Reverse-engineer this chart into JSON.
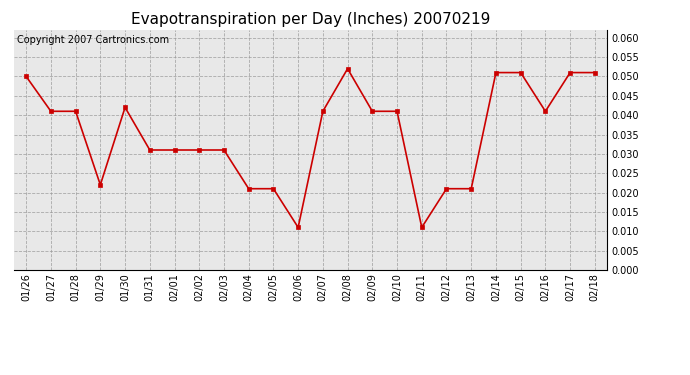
{
  "title": "Evapotranspiration per Day (Inches) 20070219",
  "copyright_text": "Copyright 2007 Cartronics.com",
  "dates": [
    "01/26",
    "01/27",
    "01/28",
    "01/29",
    "01/30",
    "01/31",
    "02/01",
    "02/02",
    "02/03",
    "02/04",
    "02/05",
    "02/06",
    "02/07",
    "02/08",
    "02/09",
    "02/10",
    "02/11",
    "02/12",
    "02/13",
    "02/14",
    "02/15",
    "02/16",
    "02/17",
    "02/18"
  ],
  "values": [
    0.05,
    0.041,
    0.041,
    0.022,
    0.042,
    0.031,
    0.031,
    0.031,
    0.031,
    0.021,
    0.021,
    0.011,
    0.041,
    0.052,
    0.041,
    0.041,
    0.011,
    0.021,
    0.021,
    0.051,
    0.051,
    0.041,
    0.051,
    0.051
  ],
  "line_color": "#cc0000",
  "marker": "s",
  "marker_size": 3,
  "ylim": [
    0.0,
    0.062
  ],
  "yticks": [
    0.0,
    0.005,
    0.01,
    0.015,
    0.02,
    0.025,
    0.03,
    0.035,
    0.04,
    0.045,
    0.05,
    0.055,
    0.06
  ],
  "background_color": "#ffffff",
  "plot_bg_color": "#e8e8e8",
  "grid_color": "#999999",
  "title_fontsize": 11,
  "copyright_fontsize": 7,
  "tick_label_fontsize": 7
}
